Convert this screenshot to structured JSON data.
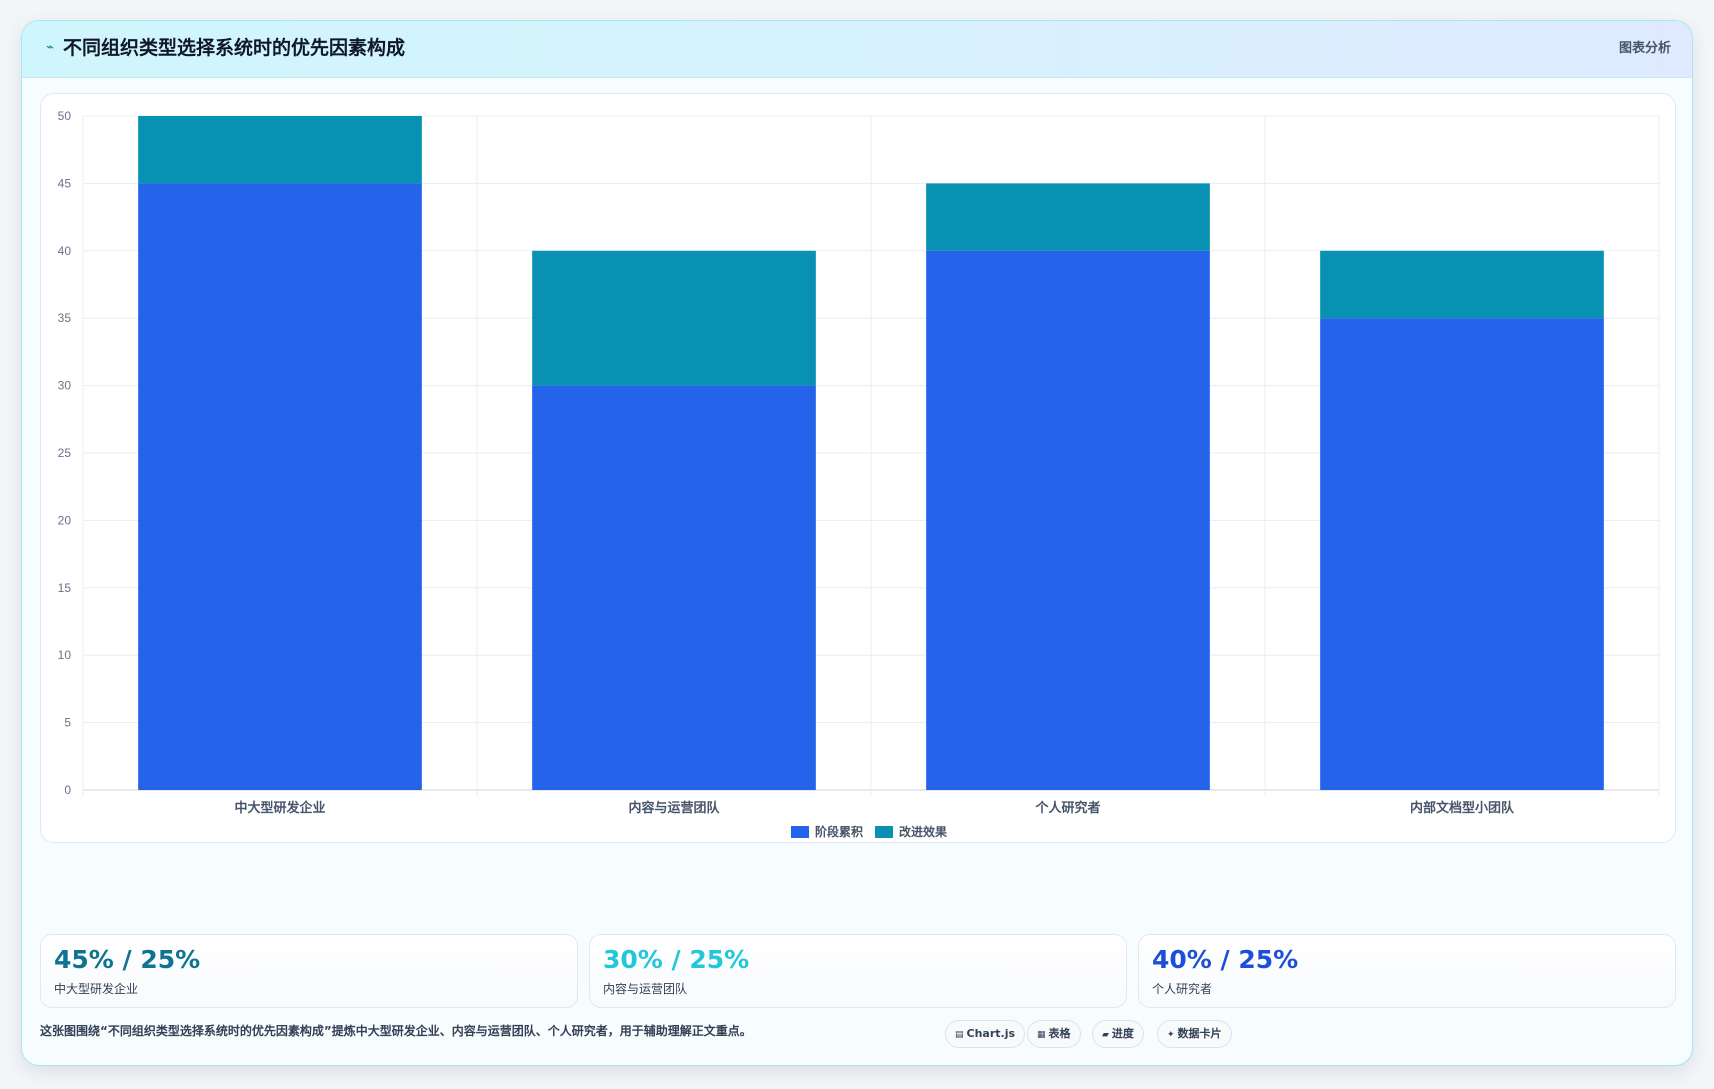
{
  "header": {
    "icon": "trend-line-icon",
    "title": "不同组织类型选择系统时的优先因素构成",
    "tag": "图表分析"
  },
  "chart_data": {
    "type": "bar",
    "stacked": true,
    "categories": [
      "中大型研发企业",
      "内容与运营团队",
      "个人研究者",
      "内部文档型小团队"
    ],
    "series": [
      {
        "name": "阶段累积",
        "values": [
          45,
          30,
          40,
          35
        ],
        "color": "#2563eb"
      },
      {
        "name": "改进效果",
        "values": [
          5,
          10,
          5,
          5
        ],
        "color": "#0891b2"
      }
    ],
    "ylim": [
      0,
      50
    ],
    "yticks": [
      0,
      5,
      10,
      15,
      20,
      25,
      30,
      35,
      40,
      45,
      50
    ],
    "grid": true,
    "legend": "bottom"
  },
  "stats": [
    {
      "value": "45% / 25%",
      "label": "中大型研发企业",
      "color": "#0e7490"
    },
    {
      "value": "30% / 25%",
      "label": "内容与运营团队",
      "color": "#22c7da"
    },
    {
      "value": "40% / 25%",
      "label": "个人研究者",
      "color": "#1d4ed8"
    }
  ],
  "footer": {
    "text": "这张图围绕“不同组织类型选择系统时的优先因素构成”提炼中大型研发企业、内容与运营团队、个人研究者，用于辅助理解正文重点。"
  },
  "chips": [
    {
      "icon": "chart-icon",
      "glyph": "▤",
      "label": "Chart.js"
    },
    {
      "icon": "table-icon",
      "glyph": "▦",
      "label": "表格"
    },
    {
      "icon": "progress-icon",
      "glyph": "▰",
      "label": "进度"
    },
    {
      "icon": "sparkle-icon",
      "glyph": "✦",
      "label": "数据卡片"
    }
  ]
}
